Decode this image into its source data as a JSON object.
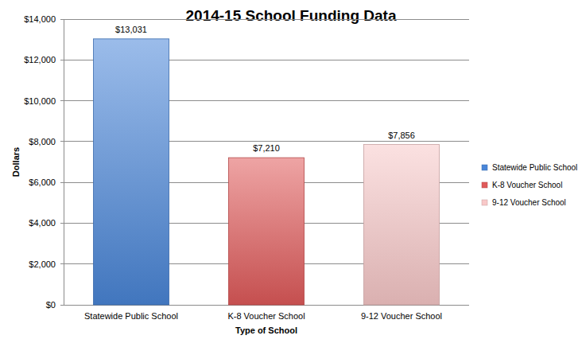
{
  "chart_data": {
    "type": "bar",
    "title": "2014-15 School Funding Data",
    "x_label": "Type of School",
    "y_label": "Dollars",
    "categories": [
      "Statewide Public School",
      "K-8 Voucher School",
      "9-12 Voucher School"
    ],
    "values": [
      13031,
      7210,
      7856
    ],
    "value_labels": [
      "$13,031",
      "$7,210",
      "$7,856"
    ],
    "colors": [
      "#4a86d8",
      "#e05a5a",
      "#f8c8c8"
    ],
    "ylim": [
      0,
      14000
    ],
    "yticks": [
      {
        "value": 0,
        "label": "$0"
      },
      {
        "value": 2000,
        "label": "$2,000"
      },
      {
        "value": 4000,
        "label": "$4,000"
      },
      {
        "value": 6000,
        "label": "$6,000"
      },
      {
        "value": 8000,
        "label": "$8,000"
      },
      {
        "value": 10000,
        "label": "$10,000"
      },
      {
        "value": 12000,
        "label": "$12,000"
      },
      {
        "value": 14000,
        "label": "$14,000"
      }
    ],
    "grid": true,
    "data_labels": true,
    "legend": "right"
  }
}
